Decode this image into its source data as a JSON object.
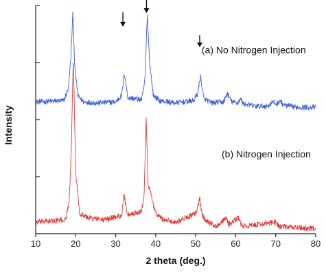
{
  "chart_data": {
    "type": "line",
    "xlabel": "2 theta (deg.)",
    "ylabel": "Intensity",
    "xlim": [
      10,
      80
    ],
    "x_ticks": [
      "10",
      "20",
      "30",
      "40",
      "50",
      "60",
      "70",
      "80"
    ],
    "y_ticks_labeled": false,
    "grid": false,
    "series": [
      {
        "name": "(a) No Nitrogen Injection",
        "color": "#3f5fd9",
        "offset": 0.52,
        "baseline": 0.055,
        "noise": 0.012,
        "x": [
          10,
          17,
          18.2,
          18.8,
          19.3,
          19.8,
          20.6,
          22,
          25,
          30,
          31.5,
          32.2,
          33,
          36.5,
          37.3,
          37.9,
          38.5,
          39.4,
          41,
          45,
          49.5,
          50.5,
          51.2,
          52,
          54,
          57,
          57.9,
          59,
          60.5,
          61.2,
          62,
          65,
          68,
          69.2,
          70.2,
          71,
          72,
          75,
          80
        ],
        "y": [
          0.1,
          0.11,
          0.23,
          0.52,
          0.93,
          0.4,
          0.15,
          0.1,
          0.09,
          0.1,
          0.16,
          0.37,
          0.14,
          0.12,
          0.3,
          0.92,
          0.46,
          0.16,
          0.11,
          0.09,
          0.11,
          0.18,
          0.34,
          0.13,
          0.09,
          0.1,
          0.18,
          0.1,
          0.09,
          0.13,
          0.08,
          0.06,
          0.06,
          0.1,
          0.08,
          0.11,
          0.07,
          0.05,
          0.05
        ]
      },
      {
        "name": "(b) Nitrogen Injection",
        "color": "#e23a3a",
        "offset": 0.0,
        "baseline": 0.07,
        "noise": 0.012,
        "x": [
          10,
          17.5,
          18.4,
          18.9,
          19.4,
          20,
          21,
          23,
          27,
          31.5,
          32.1,
          32.8,
          36.5,
          37.1,
          37.6,
          38.1,
          38.9,
          39.8,
          40.5,
          42,
          45,
          50.2,
          51,
          51.6,
          52.5,
          55,
          57.5,
          58.3,
          60.8,
          61.3,
          62,
          70,
          71,
          80
        ],
        "y": [
          0.08,
          0.09,
          0.18,
          0.4,
          0.82,
          0.3,
          0.12,
          0.1,
          0.09,
          0.11,
          0.21,
          0.11,
          0.13,
          0.2,
          0.56,
          0.25,
          0.2,
          0.13,
          0.11,
          0.09,
          0.08,
          0.12,
          0.19,
          0.11,
          0.09,
          0.06,
          0.1,
          0.07,
          0.1,
          0.07,
          0.06,
          0.08,
          0.06,
          0.05
        ]
      }
    ],
    "annotations": [
      {
        "text": "(a) No Nitrogen Injection",
        "x": 51.5,
        "y": 0.79
      },
      {
        "text": "(b) Nitrogen Injection",
        "x": 56.5,
        "y": 0.335
      }
    ],
    "arrows": [
      {
        "x": 31.8,
        "y_top": 0.97,
        "y_bottom": 0.91
      },
      {
        "x": 37.7,
        "y_top": 1.03,
        "y_bottom": 0.97
      },
      {
        "x": 51.0,
        "y_top": 0.87,
        "y_bottom": 0.82
      }
    ]
  }
}
